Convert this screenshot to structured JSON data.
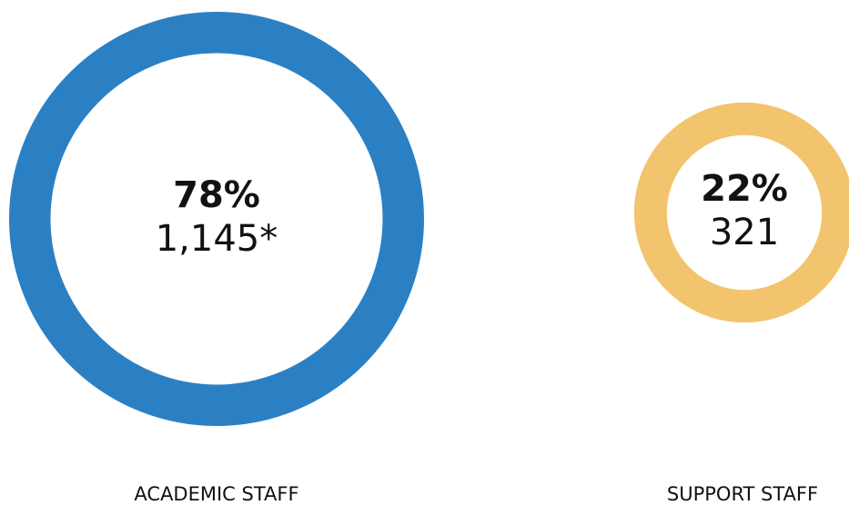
{
  "chart_data": {
    "type": "ring",
    "categories": [
      "ACADEMIC STAFF",
      "SUPPORT STAFF"
    ],
    "values": [
      78,
      22
    ],
    "value_labels": [
      "78%",
      "22%"
    ],
    "counts": [
      1145,
      321
    ],
    "count_labels": [
      "1,145*",
      "321"
    ],
    "colors": [
      "#2b80c4",
      "#f2c46e"
    ]
  }
}
